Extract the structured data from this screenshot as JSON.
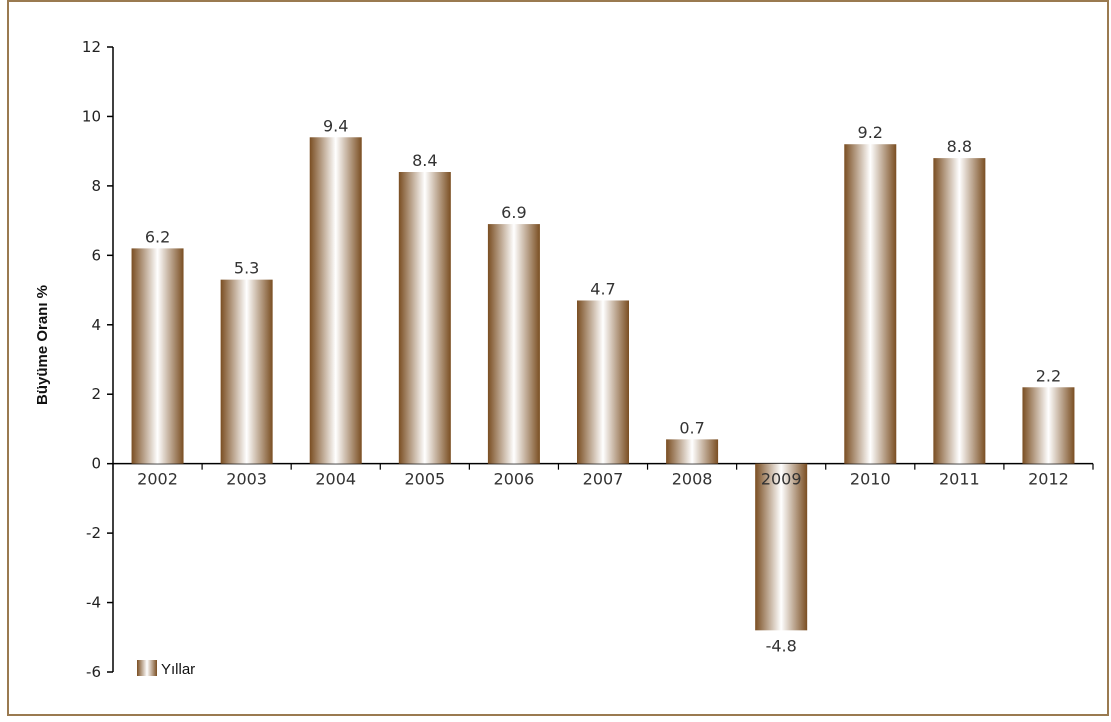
{
  "chart_data": {
    "type": "bar",
    "categories": [
      "2002",
      "2003",
      "2004",
      "2005",
      "2006",
      "2007",
      "2008",
      "2009",
      "2010",
      "2011",
      "2012"
    ],
    "series": [
      {
        "name": "Yıllar",
        "values": [
          6.2,
          5.3,
          9.4,
          8.4,
          6.9,
          4.7,
          0.7,
          -4.8,
          9.2,
          8.8,
          2.2
        ]
      }
    ],
    "data_labels": [
      "6.2",
      "5.3",
      "9.4",
      "8.4",
      "6.9",
      "4.7",
      "0.7",
      "-4.8",
      "9.2",
      "8.8",
      "2.2"
    ],
    "title": "",
    "xlabel": "",
    "ylabel": "Büyüme Oranı %",
    "ylim": [
      -6,
      12
    ],
    "yticks": [
      12,
      10,
      8,
      6,
      4,
      2,
      0,
      -2,
      -4,
      -6
    ],
    "grid": false,
    "legend": "bottom-left",
    "colors": {
      "bar_dark": "#7a4e22",
      "bar_light": "#ffffff",
      "frame": "#9a7a50"
    }
  }
}
